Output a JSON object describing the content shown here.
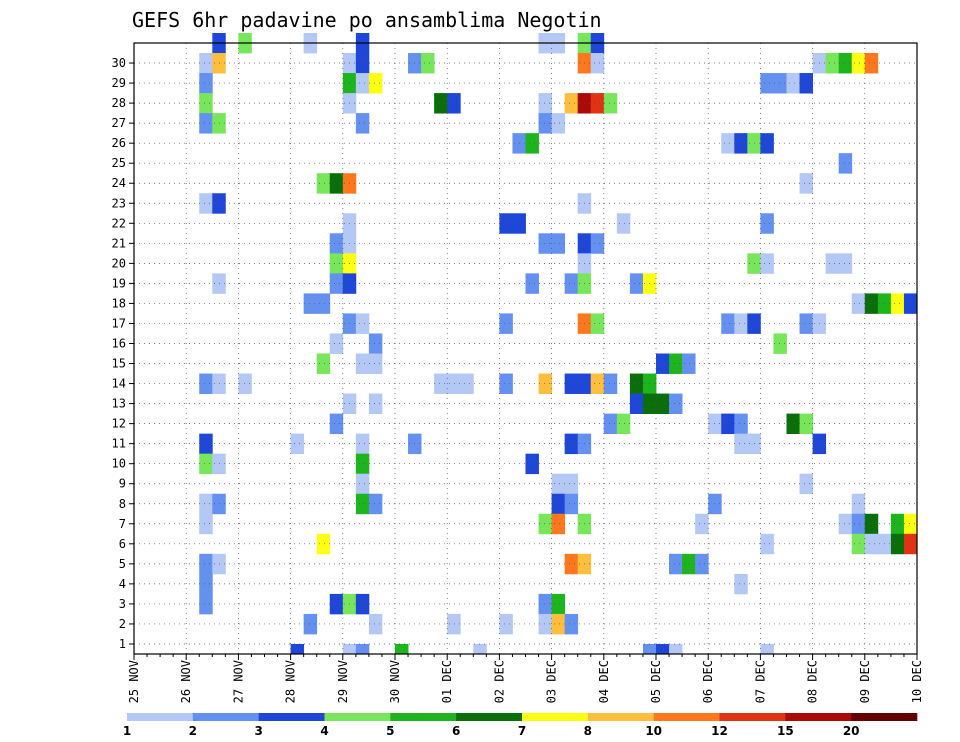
{
  "chart_data": {
    "type": "heatmap",
    "title": "GEFS 6hr padavine po ansamblima Negotin",
    "xlabel": "",
    "ylabel": "",
    "x_start": "2020-11-25 00Z",
    "x_step_hours": 6,
    "x_steps": 60,
    "x_tick_labels": [
      "25 NOV",
      "26 NOV",
      "27 NOV",
      "28 NOV",
      "29 NOV",
      "30 NOV",
      "01 DEC",
      "02 DEC",
      "03 DEC",
      "04 DEC",
      "05 DEC",
      "06 DEC",
      "07 DEC",
      "08 DEC",
      "09 DEC",
      "10 DEC"
    ],
    "y_tick_labels": [
      "1",
      "2",
      "3",
      "4",
      "5",
      "6",
      "7",
      "8",
      "9",
      "10",
      "11",
      "12",
      "13",
      "14",
      "15",
      "16",
      "17",
      "18",
      "19",
      "20",
      "21",
      "22",
      "23",
      "24",
      "25",
      "26",
      "27",
      "28",
      "29",
      "30"
    ],
    "grid": true,
    "colorbar": {
      "placement": "bottom",
      "levels": [
        "1",
        "2",
        "3",
        "4",
        "5",
        "6",
        "7",
        "8",
        "10",
        "12",
        "15",
        "20"
      ],
      "colors": [
        "#b4c8f5",
        "#6490f0",
        "#1e46d7",
        "#78e65a",
        "#1eb41e",
        "#0a6e0a",
        "#ffff14",
        "#ffbe3c",
        "#ff781e",
        "#e13214",
        "#aa0a0a",
        "#640000"
      ]
    },
    "cells": [
      {
        "m": 30,
        "t": [
          [
            6,
            1,
            2
          ],
          [
            8,
            1,
            3
          ],
          [
            13,
            1,
            0
          ],
          [
            17,
            1,
            2
          ],
          [
            31,
            2,
            0
          ],
          [
            34,
            1,
            3
          ],
          [
            35,
            1,
            2
          ]
        ]
      },
      {
        "m": 29,
        "t": [
          [
            5,
            1,
            0
          ],
          [
            6,
            1,
            7
          ],
          [
            16,
            1,
            0
          ],
          [
            17,
            1,
            2
          ],
          [
            21,
            1,
            1
          ],
          [
            22,
            1,
            3
          ],
          [
            34,
            1,
            8
          ],
          [
            35,
            1,
            0
          ],
          [
            52,
            1,
            0
          ],
          [
            53,
            1,
            3
          ],
          [
            54,
            1,
            4
          ],
          [
            55,
            1,
            6
          ],
          [
            56,
            1,
            8
          ]
        ]
      },
      {
        "m": 28,
        "t": [
          [
            5,
            1,
            1
          ],
          [
            16,
            1,
            4
          ],
          [
            17,
            1,
            0
          ],
          [
            18,
            1,
            6
          ],
          [
            48,
            2,
            1
          ],
          [
            50,
            1,
            0
          ],
          [
            51,
            1,
            2
          ]
        ]
      },
      {
        "m": 27,
        "t": [
          [
            5,
            1,
            3
          ],
          [
            16,
            1,
            0
          ],
          [
            23,
            1,
            5
          ],
          [
            24,
            1,
            2
          ],
          [
            31,
            1,
            0
          ],
          [
            33,
            1,
            7
          ],
          [
            34,
            1,
            10
          ],
          [
            35,
            1,
            9
          ],
          [
            36,
            1,
            3
          ]
        ]
      },
      {
        "m": 26,
        "t": [
          [
            5,
            1,
            1
          ],
          [
            6,
            1,
            3
          ],
          [
            17,
            1,
            1
          ],
          [
            31,
            1,
            1
          ],
          [
            32,
            1,
            0
          ]
        ]
      },
      {
        "m": 25,
        "t": [
          [
            29,
            1,
            1
          ],
          [
            30,
            1,
            4
          ],
          [
            45,
            1,
            0
          ],
          [
            46,
            1,
            2
          ],
          [
            47,
            1,
            3
          ],
          [
            48,
            1,
            2
          ]
        ]
      },
      {
        "m": 24,
        "t": [
          [
            54,
            1,
            1
          ]
        ]
      },
      {
        "m": 23,
        "t": [
          [
            14,
            1,
            3
          ],
          [
            15,
            1,
            5
          ],
          [
            16,
            1,
            8
          ],
          [
            51,
            1,
            0
          ]
        ]
      },
      {
        "m": 22,
        "t": [
          [
            5,
            1,
            0
          ],
          [
            6,
            1,
            2
          ],
          [
            34,
            1,
            0
          ]
        ]
      },
      {
        "m": 21,
        "t": [
          [
            16,
            1,
            0
          ],
          [
            28,
            2,
            2
          ],
          [
            37,
            1,
            0
          ],
          [
            48,
            1,
            1
          ]
        ]
      },
      {
        "m": 20,
        "t": [
          [
            15,
            1,
            1
          ],
          [
            16,
            1,
            0
          ],
          [
            31,
            2,
            1
          ],
          [
            34,
            1,
            2
          ],
          [
            35,
            1,
            1
          ]
        ]
      },
      {
        "m": 19,
        "t": [
          [
            15,
            1,
            3
          ],
          [
            16,
            1,
            6
          ],
          [
            34,
            1,
            0
          ],
          [
            47,
            1,
            3
          ],
          [
            48,
            1,
            0
          ],
          [
            53,
            2,
            0
          ]
        ]
      },
      {
        "m": 18,
        "t": [
          [
            6,
            1,
            0
          ],
          [
            15,
            1,
            1
          ],
          [
            16,
            1,
            2
          ],
          [
            30,
            1,
            1
          ],
          [
            33,
            1,
            1
          ],
          [
            34,
            1,
            3
          ],
          [
            38,
            1,
            1
          ],
          [
            39,
            1,
            6
          ]
        ]
      },
      {
        "m": 17,
        "t": [
          [
            13,
            2,
            1
          ],
          [
            55,
            1,
            0
          ],
          [
            56,
            1,
            5
          ],
          [
            57,
            1,
            4
          ],
          [
            58,
            1,
            6
          ],
          [
            59,
            1,
            2
          ]
        ]
      },
      {
        "m": 16,
        "t": [
          [
            16,
            1,
            1
          ],
          [
            17,
            1,
            0
          ],
          [
            28,
            1,
            1
          ],
          [
            34,
            1,
            8
          ],
          [
            35,
            1,
            3
          ],
          [
            45,
            1,
            1
          ],
          [
            46,
            1,
            0
          ],
          [
            47,
            1,
            2
          ],
          [
            51,
            1,
            1
          ],
          [
            52,
            1,
            0
          ]
        ]
      },
      {
        "m": 15,
        "t": [
          [
            15,
            1,
            0
          ],
          [
            18,
            1,
            1
          ],
          [
            49,
            1,
            3
          ]
        ]
      },
      {
        "m": 14,
        "t": [
          [
            14,
            1,
            3
          ],
          [
            17,
            2,
            0
          ],
          [
            40,
            1,
            2
          ],
          [
            41,
            1,
            4
          ],
          [
            42,
            1,
            1
          ]
        ]
      },
      {
        "m": 13,
        "t": [
          [
            5,
            1,
            1
          ],
          [
            6,
            1,
            0
          ],
          [
            8,
            1,
            0
          ],
          [
            23,
            3,
            0
          ],
          [
            28,
            1,
            1
          ],
          [
            31,
            1,
            7
          ],
          [
            33,
            2,
            2
          ],
          [
            35,
            1,
            7
          ],
          [
            36,
            1,
            1
          ],
          [
            38,
            1,
            5
          ],
          [
            39,
            1,
            4
          ]
        ]
      },
      {
        "m": 12,
        "t": [
          [
            16,
            1,
            0
          ],
          [
            18,
            1,
            0
          ],
          [
            38,
            1,
            2
          ],
          [
            39,
            2,
            5
          ],
          [
            41,
            1,
            1
          ]
        ]
      },
      {
        "m": 11,
        "t": [
          [
            15,
            1,
            1
          ],
          [
            36,
            1,
            1
          ],
          [
            37,
            1,
            3
          ],
          [
            44,
            1,
            0
          ],
          [
            45,
            1,
            2
          ],
          [
            46,
            1,
            1
          ],
          [
            50,
            1,
            5
          ],
          [
            51,
            1,
            3
          ]
        ]
      },
      {
        "m": 10,
        "t": [
          [
            5,
            1,
            2
          ],
          [
            12,
            1,
            0
          ],
          [
            17,
            1,
            0
          ],
          [
            21,
            1,
            1
          ],
          [
            33,
            1,
            2
          ],
          [
            34,
            1,
            1
          ],
          [
            46,
            2,
            0
          ],
          [
            52,
            1,
            2
          ]
        ]
      },
      {
        "m": 9,
        "t": [
          [
            5,
            1,
            3
          ],
          [
            6,
            1,
            0
          ],
          [
            17,
            1,
            4
          ],
          [
            30,
            1,
            2
          ]
        ]
      },
      {
        "m": 8,
        "t": [
          [
            17,
            1,
            0
          ],
          [
            32,
            2,
            0
          ],
          [
            51,
            1,
            0
          ]
        ]
      },
      {
        "m": 7,
        "t": [
          [
            5,
            1,
            0
          ],
          [
            6,
            1,
            1
          ],
          [
            17,
            1,
            4
          ],
          [
            18,
            1,
            1
          ],
          [
            32,
            1,
            2
          ],
          [
            33,
            1,
            1
          ],
          [
            44,
            1,
            1
          ],
          [
            55,
            1,
            0
          ]
        ]
      },
      {
        "m": 6,
        "t": [
          [
            5,
            1,
            0
          ],
          [
            31,
            1,
            3
          ],
          [
            32,
            1,
            8
          ],
          [
            34,
            1,
            3
          ],
          [
            43,
            1,
            0
          ],
          [
            54,
            1,
            0
          ],
          [
            55,
            1,
            1
          ],
          [
            56,
            1,
            5
          ],
          [
            58,
            1,
            4
          ],
          [
            59,
            1,
            6
          ]
        ]
      },
      {
        "m": 5,
        "t": [
          [
            14,
            1,
            6
          ],
          [
            48,
            1,
            0
          ],
          [
            55,
            1,
            3
          ],
          [
            56,
            2,
            0
          ],
          [
            58,
            1,
            5
          ],
          [
            59,
            1,
            9
          ]
        ]
      },
      {
        "m": 4,
        "t": [
          [
            5,
            1,
            1
          ],
          [
            6,
            1,
            0
          ],
          [
            33,
            1,
            8
          ],
          [
            34,
            1,
            7
          ],
          [
            41,
            1,
            1
          ],
          [
            42,
            1,
            4
          ],
          [
            43,
            1,
            1
          ]
        ]
      },
      {
        "m": 3,
        "t": [
          [
            5,
            1,
            1
          ],
          [
            46,
            1,
            0
          ]
        ]
      },
      {
        "m": 2,
        "t": [
          [
            5,
            1,
            1
          ],
          [
            15,
            1,
            2
          ],
          [
            16,
            1,
            3
          ],
          [
            17,
            1,
            2
          ],
          [
            31,
            1,
            1
          ],
          [
            32,
            1,
            4
          ]
        ]
      },
      {
        "m": 1,
        "t": [
          [
            13,
            1,
            1
          ],
          [
            18,
            1,
            0
          ],
          [
            24,
            1,
            0
          ],
          [
            28,
            1,
            0
          ],
          [
            31,
            1,
            0
          ],
          [
            32,
            1,
            7
          ],
          [
            33,
            1,
            1
          ]
        ]
      },
      {
        "m": 0,
        "t": [
          [
            12,
            1,
            2
          ],
          [
            16,
            1,
            0
          ],
          [
            17,
            1,
            1
          ],
          [
            20,
            1,
            4
          ],
          [
            26,
            1,
            0
          ],
          [
            39,
            1,
            1
          ],
          [
            40,
            1,
            2
          ],
          [
            41,
            1,
            0
          ],
          [
            48,
            1,
            0
          ]
        ]
      }
    ]
  }
}
